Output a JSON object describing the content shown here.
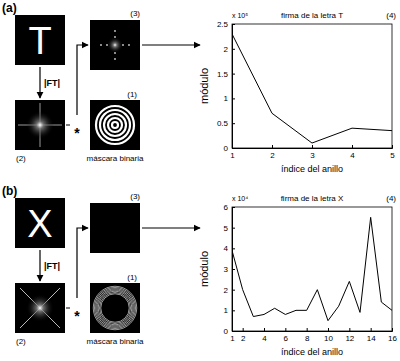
{
  "diagram": {
    "panels": [
      {
        "label": "(a)",
        "letter": "T",
        "ft_label": "|FT|",
        "operator": "*",
        "mask_label": "máscara binaria",
        "markers": [
          "(1)",
          "(2)",
          "(3)",
          "(4)"
        ]
      },
      {
        "label": "(b)",
        "letter": "X",
        "ft_label": "|FT|",
        "operator": "*",
        "mask_label": "máscara binaria",
        "markers": [
          "(1)",
          "(2)",
          "(3)",
          "(4)"
        ]
      }
    ]
  },
  "chart_data": [
    {
      "type": "line",
      "title": "firma de la letra T",
      "x_label": "índice del anillo",
      "y_label": "módulo",
      "annotation": "x 10⁵",
      "x": [
        1,
        2,
        3,
        4,
        5
      ],
      "values": [
        2.3,
        0.7,
        0.1,
        0.4,
        0.35
      ],
      "color": "#000000",
      "xlim": [
        1,
        5
      ],
      "xticks": [
        1,
        2,
        3,
        4,
        5
      ],
      "ylim": [
        0,
        2.5
      ],
      "yticks": [
        0,
        0.5,
        1,
        1.5,
        2,
        2.5
      ]
    },
    {
      "type": "line",
      "title": "firma de la letra X",
      "x_label": "índice del anillo",
      "y_label": "módulo",
      "annotation": "x 10⁴",
      "x": [
        1,
        2,
        3,
        4,
        5,
        6,
        7,
        8,
        9,
        10,
        11,
        12,
        13,
        14,
        15,
        16
      ],
      "values": [
        3.9,
        2.0,
        0.7,
        0.8,
        1.1,
        0.8,
        1.0,
        1.0,
        2.0,
        0.5,
        1.2,
        2.4,
        0.9,
        5.5,
        1.4,
        1.0
      ],
      "color": "#000000",
      "xlim": [
        1,
        16
      ],
      "xticks": [
        1,
        2,
        4,
        6,
        8,
        10,
        12,
        14,
        16
      ],
      "ylim": [
        0,
        6
      ],
      "yticks": [
        0,
        1,
        2,
        3,
        4,
        5,
        6
      ]
    }
  ]
}
